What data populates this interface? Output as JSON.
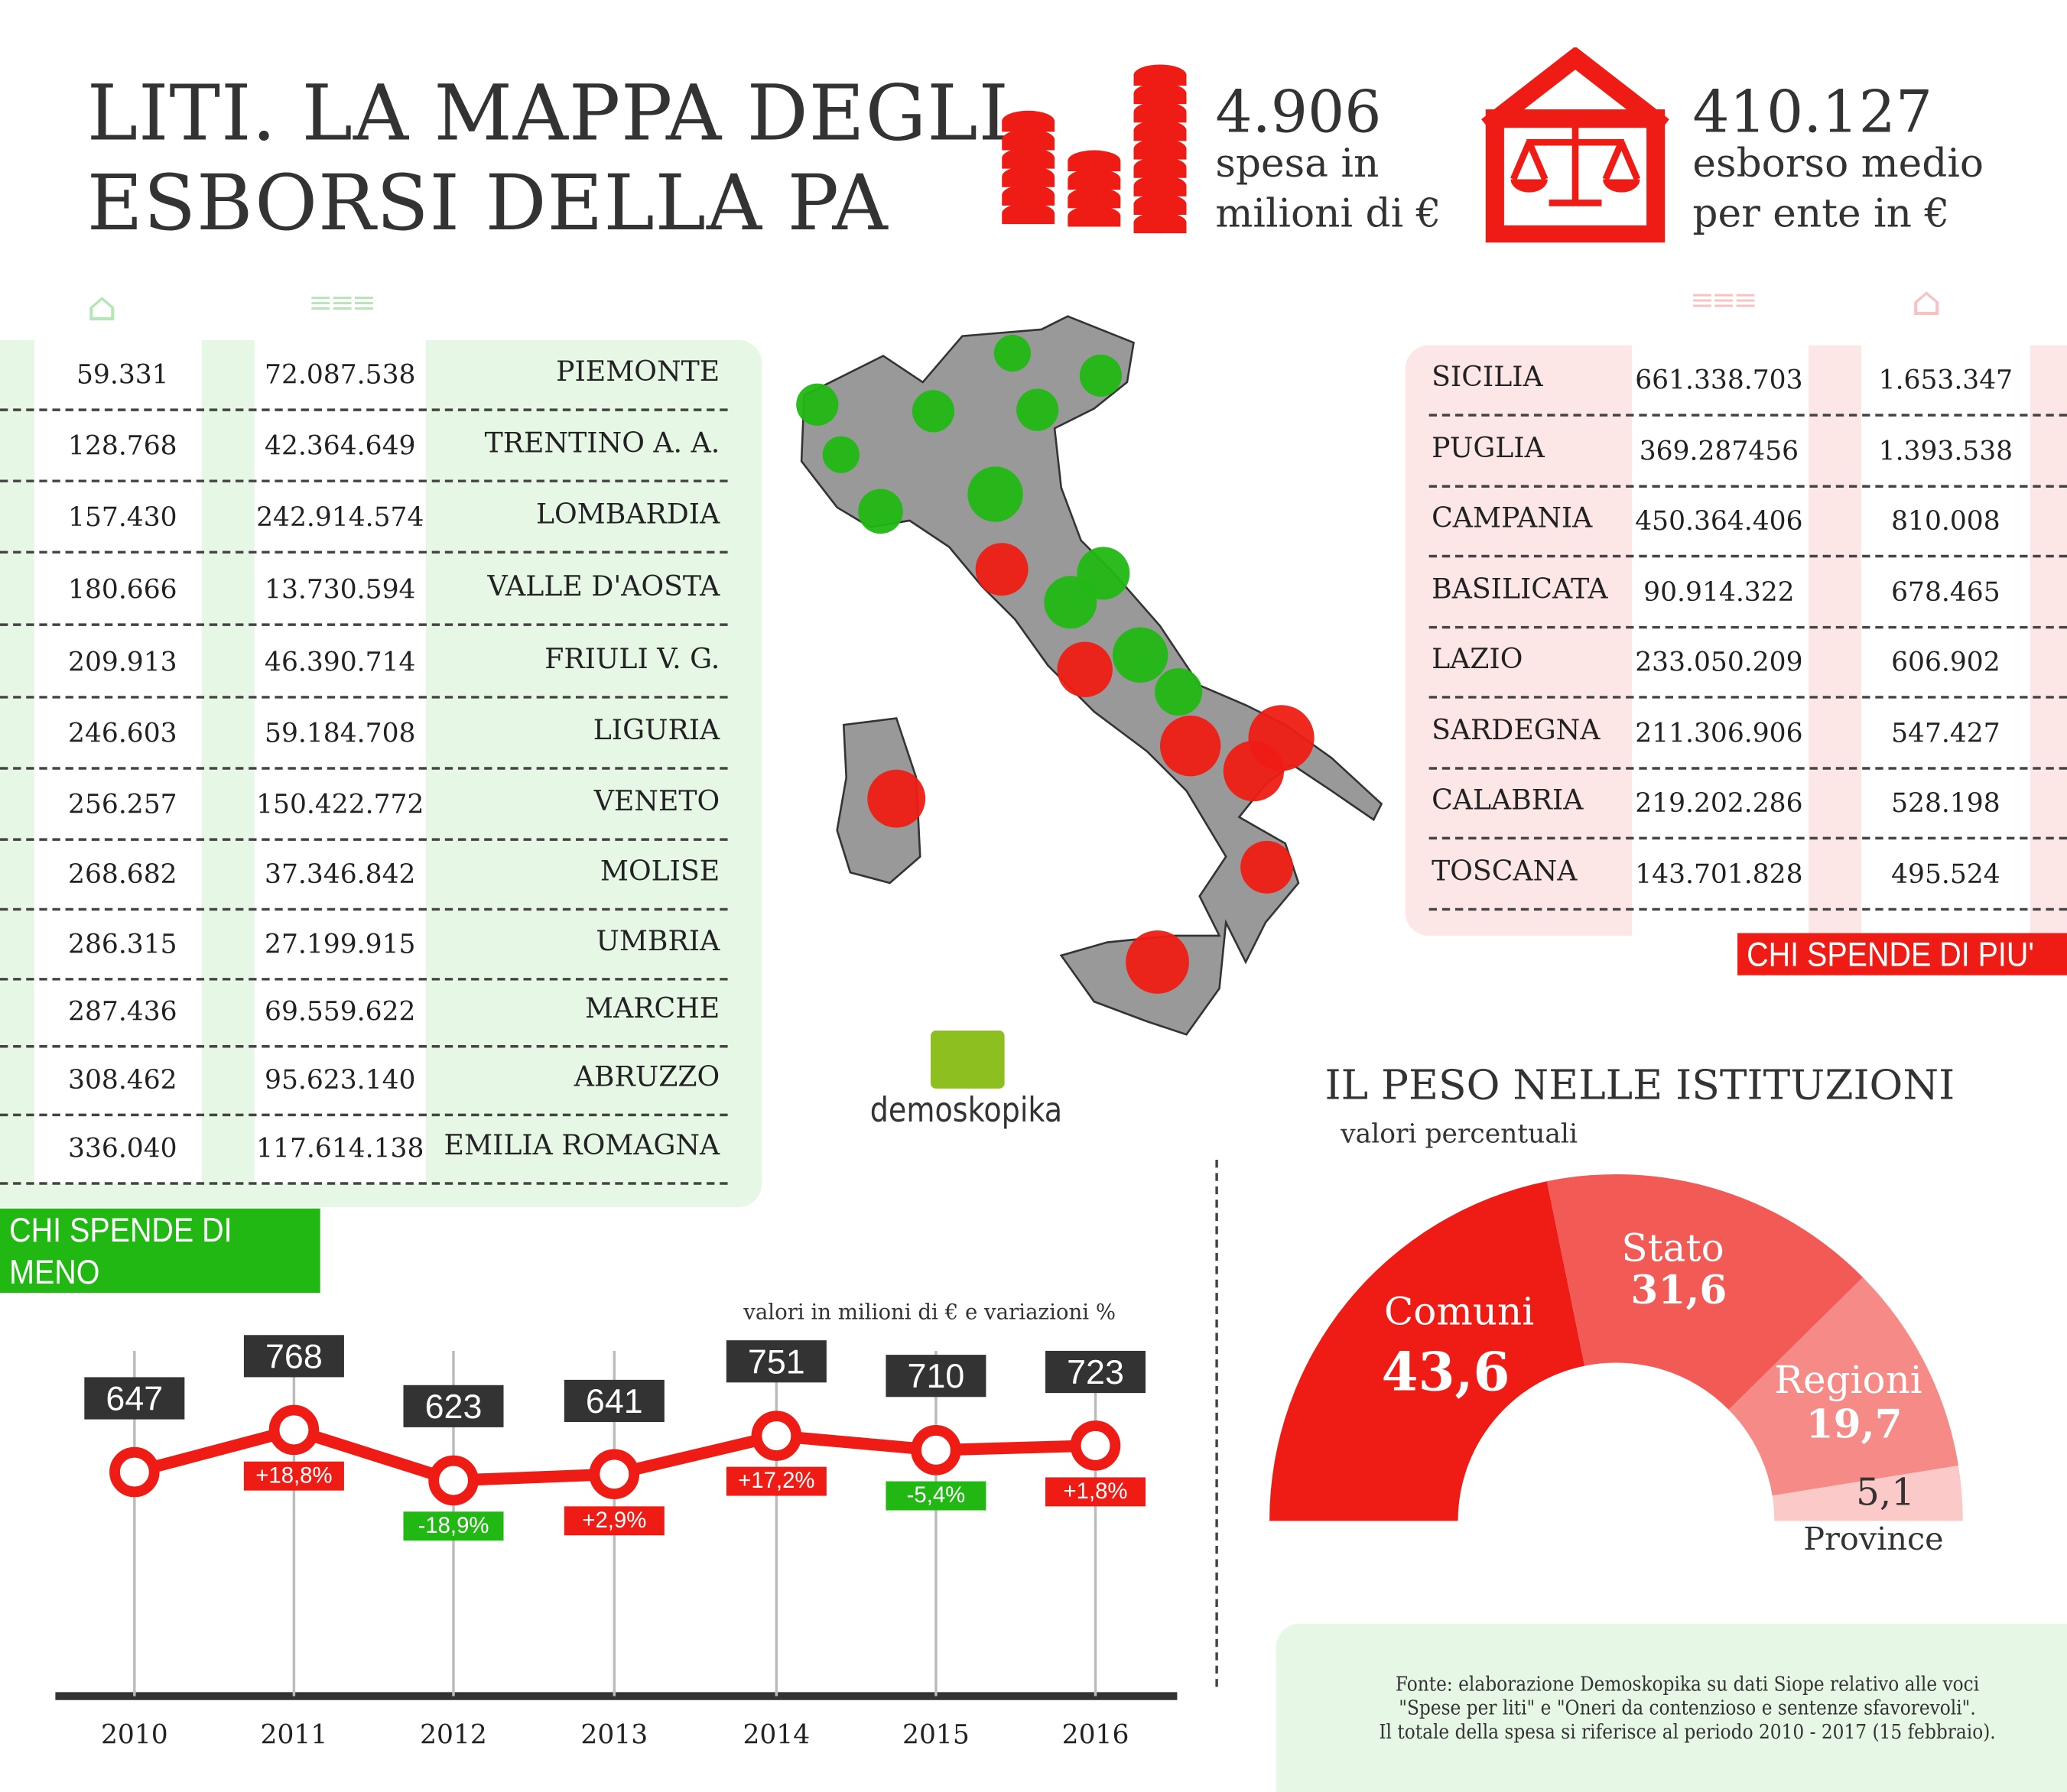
{
  "header": {
    "title": "LITI. LA MAPPA DEGLI\nESBORSI DELLA PA",
    "stat1": {
      "value": "4.906",
      "label": "spesa in\nmilioni di €",
      "icon": "coins-icon"
    },
    "stat2": {
      "value": "410.127",
      "label": "esborso medio\nper ente in €",
      "icon": "house-scales-icon"
    }
  },
  "colors": {
    "red": "#ee1c14",
    "green": "#22b814",
    "green_bg": "#e6f7e6",
    "red_bg": "#fde6e6",
    "gray": "#999999"
  },
  "least": {
    "banner": "CHI SPENDE DI MENO",
    "rows": [
      {
        "region": "PIEMONTE",
        "total": "72.087.538",
        "avg": "59.331"
      },
      {
        "region": "TRENTINO A. A.",
        "total": "42.364.649",
        "avg": "128.768"
      },
      {
        "region": "LOMBARDIA",
        "total": "242.914.574",
        "avg": "157.430"
      },
      {
        "region": "VALLE D'AOSTA",
        "total": "13.730.594",
        "avg": "180.666"
      },
      {
        "region": "FRIULI V. G.",
        "total": "46.390.714",
        "avg": "209.913"
      },
      {
        "region": "LIGURIA",
        "total": "59.184.708",
        "avg": "246.603"
      },
      {
        "region": "VENETO",
        "total": "150.422.772",
        "avg": "256.257"
      },
      {
        "region": "MOLISE",
        "total": "37.346.842",
        "avg": "268.682"
      },
      {
        "region": "UMBRIA",
        "total": "27.199.915",
        "avg": "286.315"
      },
      {
        "region": "MARCHE",
        "total": "69.559.622",
        "avg": "287.436"
      },
      {
        "region": "ABRUZZO",
        "total": "95.623.140",
        "avg": "308.462"
      },
      {
        "region": "EMILIA ROMAGNA",
        "total": "117.614.138",
        "avg": "336.040"
      }
    ]
  },
  "most": {
    "banner": "CHI SPENDE DI PIU'",
    "rows": [
      {
        "region": "SICILIA",
        "total": "661.338.703",
        "avg": "1.653.347"
      },
      {
        "region": "PUGLIA",
        "total": "369.287456",
        "avg": "1.393.538"
      },
      {
        "region": "CAMPANIA",
        "total": "450.364.406",
        "avg": "810.008"
      },
      {
        "region": "BASILICATA",
        "total": "90.914.322",
        "avg": "678.465"
      },
      {
        "region": "LAZIO",
        "total": "233.050.209",
        "avg": "606.902"
      },
      {
        "region": "SARDEGNA",
        "total": "211.306.906",
        "avg": "547.427"
      },
      {
        "region": "CALABRIA",
        "total": "219.202.286",
        "avg": "528.198"
      },
      {
        "region": "TOSCANA",
        "total": "143.701.828",
        "avg": "495.524"
      }
    ]
  },
  "logo": {
    "text": "demoskopika"
  },
  "source": "Fonte: elaborazione Demoskopika su dati Siope relativo alle voci\n\"Spese per liti\" e \"Oneri da contenzioso e sentenze sfavorevoli\".\nIl totale della spesa si riferisce al periodo 2010 - 2017 (15 febbraio).",
  "chart_data": [
    {
      "type": "line",
      "subtitle": "valori in milioni di € e variazioni %",
      "categories": [
        "2010",
        "2011",
        "2012",
        "2013",
        "2014",
        "2015",
        "2016"
      ],
      "values": [
        647,
        768,
        623,
        641,
        751,
        710,
        723
      ],
      "value_labels": [
        "647",
        "768",
        "623",
        "641",
        "751",
        "710",
        "723"
      ],
      "changes": [
        "",
        "+18,8%",
        "-18,9%",
        "+2,9%",
        "+17,2%",
        "-5,4%",
        "+1,8%"
      ],
      "change_colors": [
        "",
        "#ee1c14",
        "#22b814",
        "#ee1c14",
        "#ee1c14",
        "#22b814",
        "#ee1c14"
      ],
      "line_color": "#ee1c14",
      "grid": false
    },
    {
      "type": "pie",
      "variant": "half-donut",
      "title": "IL PESO NELLE ISTITUZIONI",
      "subtitle": "valori percentuali",
      "labels": [
        "Comuni",
        "Stato",
        "Regioni",
        "Province"
      ],
      "values": [
        43.6,
        31.6,
        19.7,
        5.1
      ],
      "value_labels": [
        "43,6",
        "31,6",
        "19,7",
        "5,1"
      ],
      "colors": [
        "#ee1c14",
        "#f25a55",
        "#f58a87",
        "#fbc9c8"
      ]
    }
  ]
}
